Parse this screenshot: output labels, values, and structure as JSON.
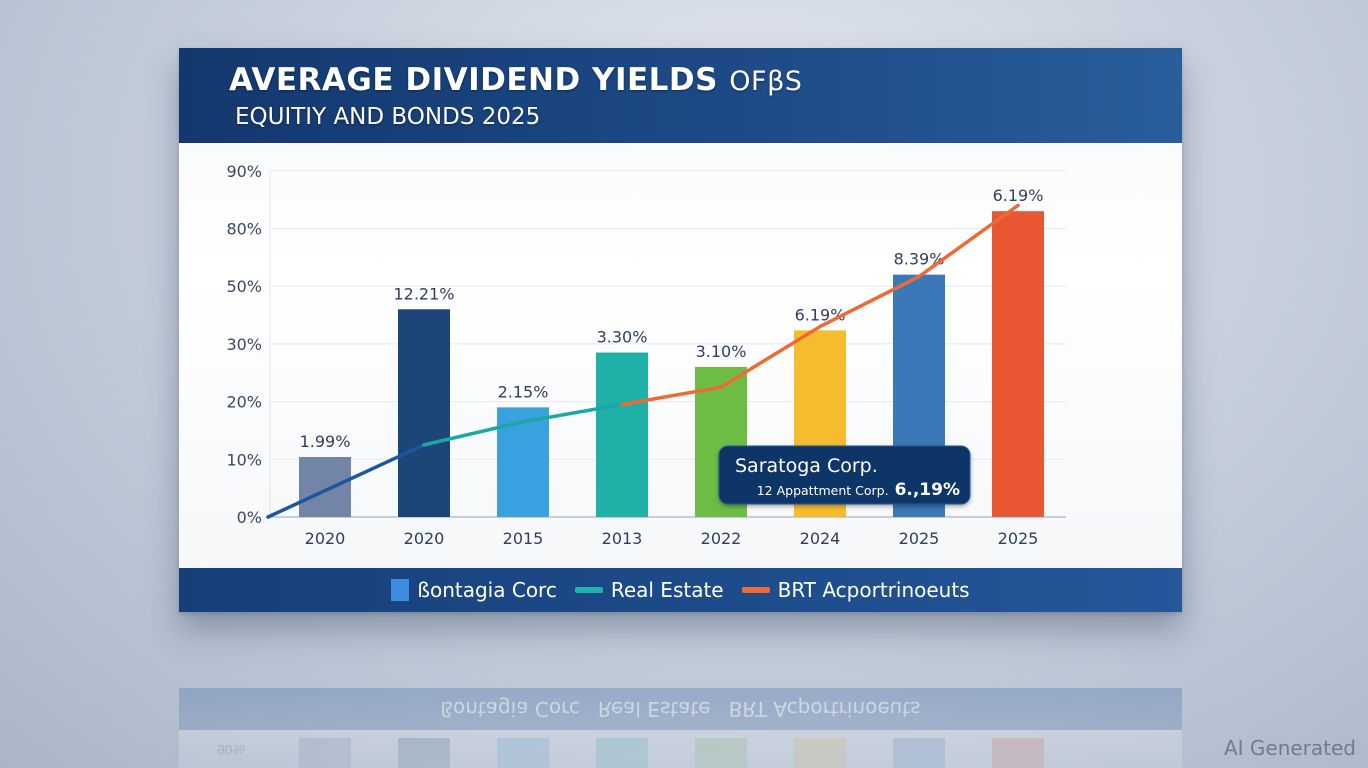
{
  "header": {
    "title_main": "AVERAGE DIVIDEND YIELDS",
    "title_suffix": "OFβS",
    "subtitle": "EQUITIY AND BONDS 2025"
  },
  "legend": [
    {
      "label": "ßontagia Corc",
      "color": "#3d8ee0",
      "shape": "square"
    },
    {
      "label": "Real Estate",
      "color": "#1fb3b0",
      "shape": "line"
    },
    {
      "label": "BRT Acportrinoeuts",
      "color": "#ee6a35",
      "shape": "line"
    }
  ],
  "tooltip": {
    "title": "Saratoga Corp.",
    "detail": "12 Appattment Corp.",
    "value": "6.,19%"
  },
  "watermark": "AI Generated",
  "reflection": {
    "tick_label": "90%"
  },
  "chart_data": {
    "type": "bar",
    "title": "AVERAGE DIVIDEND YIELDS OFβS EQUITIY AND BONDS 2025",
    "xlabel": "",
    "ylabel": "",
    "y_ticks": [
      "0%",
      "10%",
      "20%",
      "30%",
      "50%",
      "80%",
      "90%"
    ],
    "y_tick_values": [
      0,
      10,
      20,
      30,
      50,
      80,
      90
    ],
    "ylim": [
      0,
      90
    ],
    "grid": true,
    "legend_position": "bottom",
    "categories": [
      "2020",
      "2020",
      "2015",
      "2013",
      "2022",
      "2024",
      "2025",
      "2025"
    ],
    "values": [
      10.4,
      42,
      19,
      28.5,
      26,
      34.7,
      56,
      83
    ],
    "data_labels": [
      "1.99%",
      "12.21%",
      "2.15%",
      "3.30%",
      "3.10%",
      "6.19%",
      "8.39%",
      "6.19%"
    ],
    "bar_colors": [
      "#7285a6",
      "#1c4677",
      "#3aa1df",
      "#1fb0a8",
      "#6dbd45",
      "#f6bb2f",
      "#3a78b7",
      "#e85731"
    ],
    "trend_line": {
      "name": "trend",
      "x_index": [
        -0.3,
        1.0,
        2.0,
        3.0,
        4.0,
        5.0,
        6.0,
        7.0
      ],
      "values": [
        0,
        12.5,
        16.5,
        19.5,
        22.5,
        36,
        55,
        84
      ],
      "colors": [
        "#1d56a0",
        "#1aa7a5",
        "#ee6a35"
      ],
      "color_switch_index": 3.0
    }
  }
}
